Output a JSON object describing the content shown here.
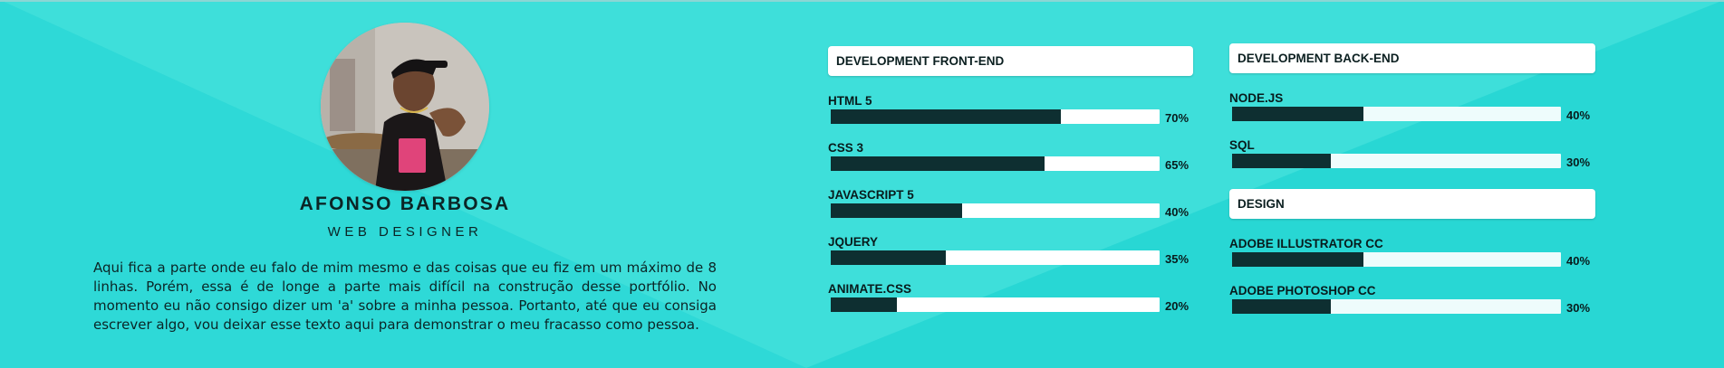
{
  "profile": {
    "name": "AFONSO BARBOSA",
    "role": "WEB DESIGNER",
    "bio": "Aqui fica a parte onde eu falo de mim mesmo e das coisas que eu fiz em um máximo de 8 linhas. Porém, essa é de longe a parte mais difícil na construção desse portfólio. No momento eu não consigo dizer um 'a' sobre a minha pessoa. Portanto, até que eu consiga escrever algo, vou deixar esse texto aqui para demonstrar o meu fracasso como pessoa."
  },
  "skills": {
    "frontend": {
      "title": "DEVELOPMENT FRONT-END",
      "items": [
        {
          "name": "HTML 5",
          "label": "70%",
          "level": 0.7
        },
        {
          "name": "CSS 3",
          "label": "65%",
          "level": 0.65
        },
        {
          "name": "JAVASCRIPT 5",
          "label": "40%",
          "level": 0.4
        },
        {
          "name": "JQUERY",
          "label": "35%",
          "level": 0.35
        },
        {
          "name": "ANIMATE.CSS",
          "label": "20%",
          "level": 0.2
        }
      ]
    },
    "backend": {
      "title": "DEVELOPMENT BACK-END",
      "items": [
        {
          "name": "NODE.JS",
          "label": "40%",
          "level": 0.4
        },
        {
          "name": "SQL",
          "label": "30%",
          "level": 0.3
        }
      ]
    },
    "design": {
      "title": "DESIGN",
      "items": [
        {
          "name": "ADOBE ILLUSTRATOR CC",
          "label": "40%",
          "level": 0.4
        },
        {
          "name": "ADOBE PHOTOSHOP CC",
          "label": "30%",
          "level": 0.3
        }
      ]
    }
  },
  "colors": {
    "background": "#2fd9d6",
    "bar_fill": "#0e2f31",
    "bar_track": "#ffffff"
  }
}
